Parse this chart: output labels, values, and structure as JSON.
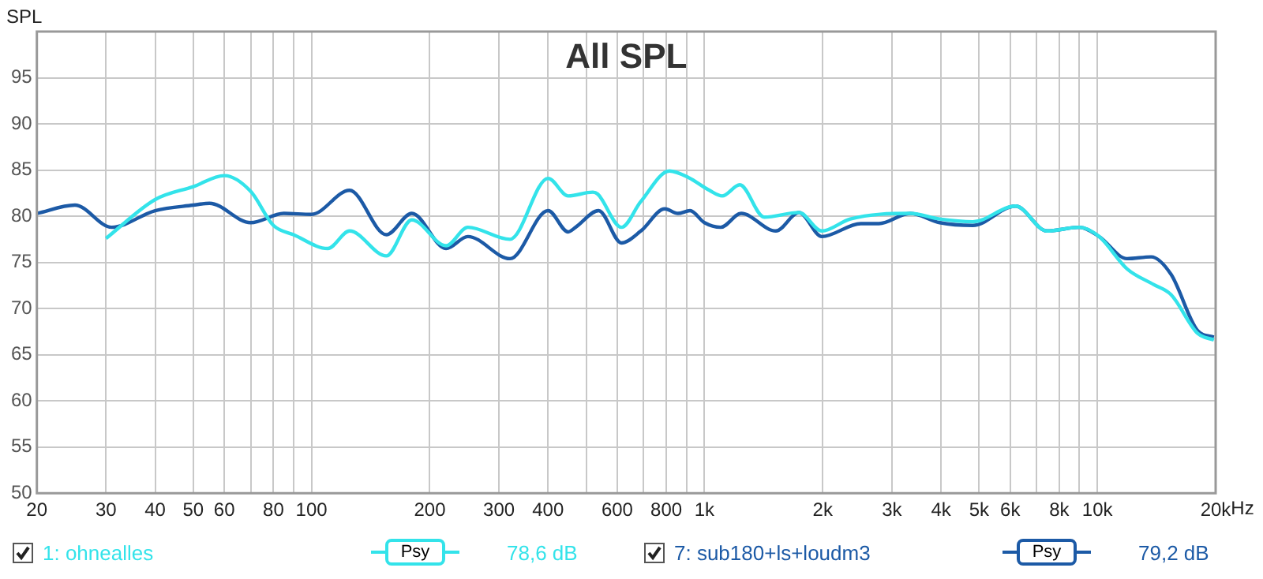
{
  "chart_data": {
    "type": "line",
    "title": "All SPL",
    "ylabel": "SPL",
    "log": "x",
    "grid": true,
    "legend": "bottom",
    "marker": "none",
    "line_style": "solid",
    "xlim": [
      20,
      20000
    ],
    "ylim": [
      50,
      100
    ],
    "xticks": [
      20,
      30,
      40,
      50,
      60,
      {
        "value": 70,
        "label": null
      },
      80,
      {
        "value": 90,
        "label": null
      },
      100,
      200,
      300,
      400,
      {
        "value": 500,
        "label": null
      },
      600,
      {
        "value": 700,
        "label": null
      },
      800,
      {
        "value": 900,
        "label": null
      },
      {
        "value": 1000,
        "label": "1k"
      },
      {
        "value": 2000,
        "label": "2k"
      },
      {
        "value": 3000,
        "label": "3k"
      },
      {
        "value": 4000,
        "label": "4k"
      },
      {
        "value": 5000,
        "label": "5k"
      },
      {
        "value": 6000,
        "label": "6k"
      },
      {
        "value": 7000,
        "label": null
      },
      {
        "value": 8000,
        "label": "8k"
      },
      {
        "value": 9000,
        "label": null
      },
      {
        "value": 10000,
        "label": "10k"
      },
      {
        "value": 20000,
        "label": "20k"
      }
    ],
    "xlabel": "Hz",
    "yticks": [
      50,
      55,
      60,
      65,
      70,
      75,
      80,
      85,
      90,
      95,
      {
        "value": 100,
        "label": null
      }
    ],
    "annotations": [
      "Psy",
      "78,6 dB",
      "Psy",
      "79,2 dB"
    ],
    "series": [
      {
        "name": "1: ohnealles",
        "color": "#33e3ea",
        "x": [
          30,
          40,
          50,
          60,
          70,
          80,
          90,
          110,
          125,
          155,
          180,
          220,
          250,
          320,
          400,
          450,
          520,
          535,
          615,
          689,
          815,
          910,
          1030,
          1110,
          1230,
          1420,
          1740,
          1990,
          2350,
          3340,
          3970,
          4820,
          6190,
          7440,
          9000,
          10100,
          11900,
          13900,
          15400,
          18000,
          19800
        ],
        "values": [
          77.6,
          81.8,
          83.2,
          84.4,
          82.7,
          79,
          78,
          76.5,
          78.4,
          75.7,
          79.6,
          76.8,
          78.8,
          77.5,
          84.1,
          82.2,
          82.6,
          82.4,
          78.8,
          81.6,
          84.9,
          84.2,
          82.8,
          82.2,
          83.4,
          79.9,
          80.4,
          78.4,
          79.7,
          80.3,
          79.7,
          79.4,
          81.1,
          78.4,
          78.8,
          77.8,
          74.3,
          72.6,
          71.5,
          67.3,
          66.6
        ]
      },
      {
        "name": "7: sub180+ls+loudm3",
        "color": "#1c5aa6",
        "x": [
          20,
          25,
          31,
          40,
          50,
          55,
          70,
          85,
          100,
          125,
          155,
          180,
          220,
          250,
          320,
          400,
          450,
          470,
          538,
          615,
          689,
          793,
          856,
          919,
          1000,
          1100,
          1240,
          1520,
          1740,
          1990,
          2500,
          2780,
          3340,
          3970,
          4820,
          6190,
          7440,
          9000,
          10100,
          11900,
          13700,
          15400,
          18000,
          19800
        ],
        "values": [
          80.3,
          81.2,
          78.8,
          80.6,
          81.2,
          81.4,
          79.3,
          80.3,
          80.2,
          82.8,
          78,
          80.3,
          76.5,
          77.8,
          75.4,
          80.6,
          78.3,
          78.8,
          80.6,
          77.1,
          78.4,
          80.8,
          80.3,
          80.6,
          79.3,
          78.8,
          80.3,
          78.4,
          80.4,
          77.8,
          79.2,
          79.2,
          80.3,
          79.3,
          79,
          81.1,
          78.4,
          78.8,
          77.8,
          75.4,
          75.6,
          73.7,
          67.6,
          66.9
        ]
      }
    ]
  }
}
